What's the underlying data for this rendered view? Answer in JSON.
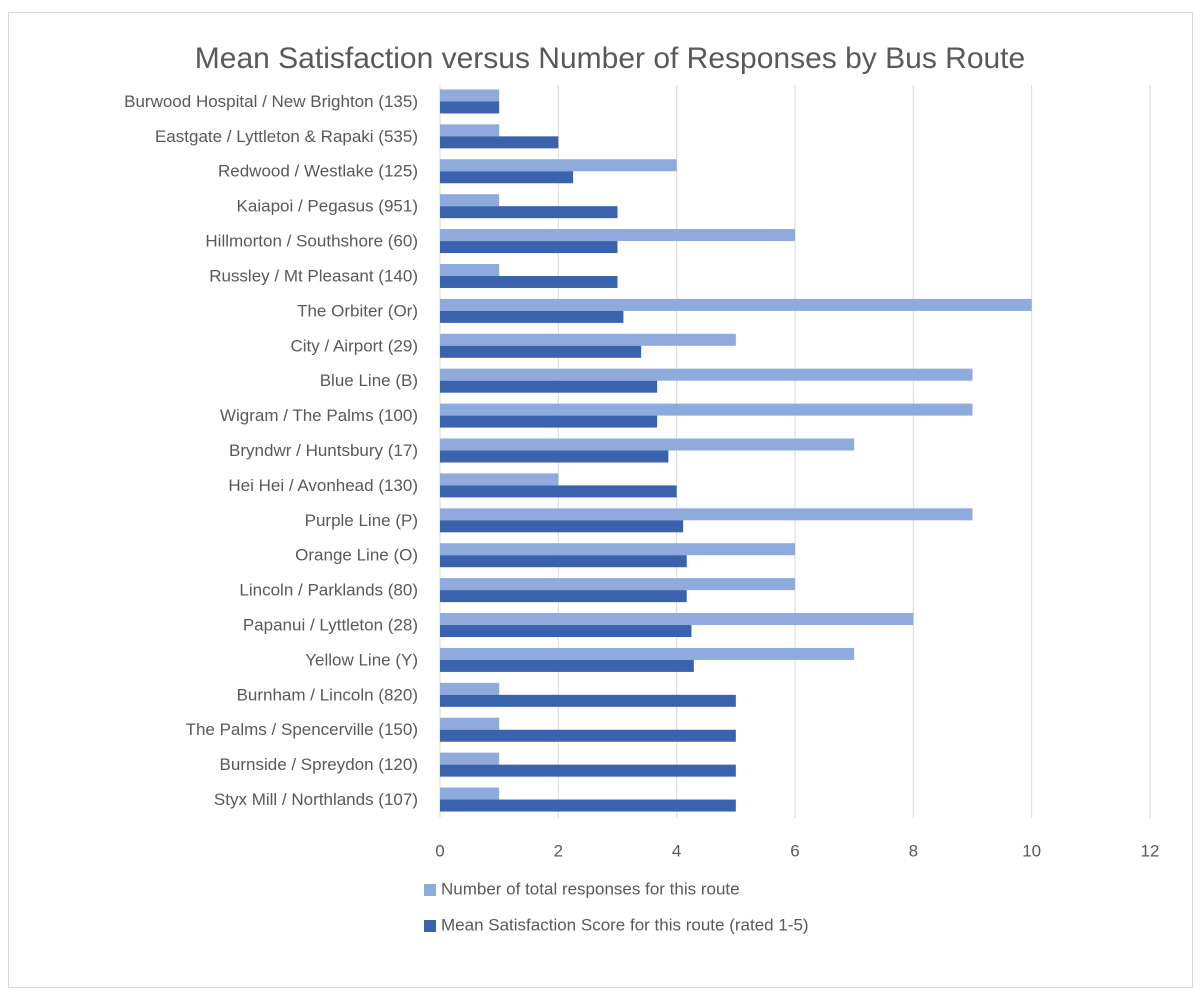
{
  "chart_data": {
    "type": "bar",
    "orientation": "horizontal",
    "title": "Mean Satisfaction versus Number of Responses by Bus Route",
    "categories": [
      "Burwood Hospital / New Brighton (135)",
      "Eastgate / Lyttleton & Rapaki (535)",
      "Redwood / Westlake (125)",
      "Kaiapoi / Pegasus (951)",
      "Hillmorton / Southshore (60)",
      "Russley  / Mt Pleasant (140)",
      "The Orbiter (Or)",
      "City / Airport (29)",
      "Blue Line (B)",
      "Wigram / The Palms (100)",
      "Bryndwr / Huntsbury (17)",
      "Hei Hei / Avonhead (130)",
      "Purple Line (P)",
      "Orange Line (O)",
      "Lincoln / Parklands (80)",
      "Papanui / Lyttleton (28)",
      "Yellow Line (Y)",
      "Burnham / Lincoln (820)",
      "The Palms / Spencerville (150)",
      "Burnside / Spreydon (120)",
      "Styx Mill / Northlands (107)"
    ],
    "series": [
      {
        "name": "Number of total responses for this route",
        "color": "#8faadc",
        "values": [
          1,
          1,
          4,
          1,
          6,
          1,
          10,
          5,
          9,
          9,
          7,
          2,
          9,
          6,
          6,
          8,
          7,
          1,
          1,
          1,
          1
        ]
      },
      {
        "name": "Mean Satisfaction Score for this route (rated 1-5)",
        "color": "#3b63ad",
        "values": [
          1,
          2,
          2.25,
          3,
          3,
          3,
          3.1,
          3.4,
          3.67,
          3.67,
          3.86,
          4,
          4.11,
          4.17,
          4.17,
          4.25,
          4.29,
          5,
          5,
          5,
          5
        ]
      }
    ],
    "xlim": [
      0,
      12
    ],
    "xticks": [
      0,
      2,
      4,
      6,
      8,
      10,
      12
    ],
    "grid": true,
    "legend": "bottom"
  }
}
